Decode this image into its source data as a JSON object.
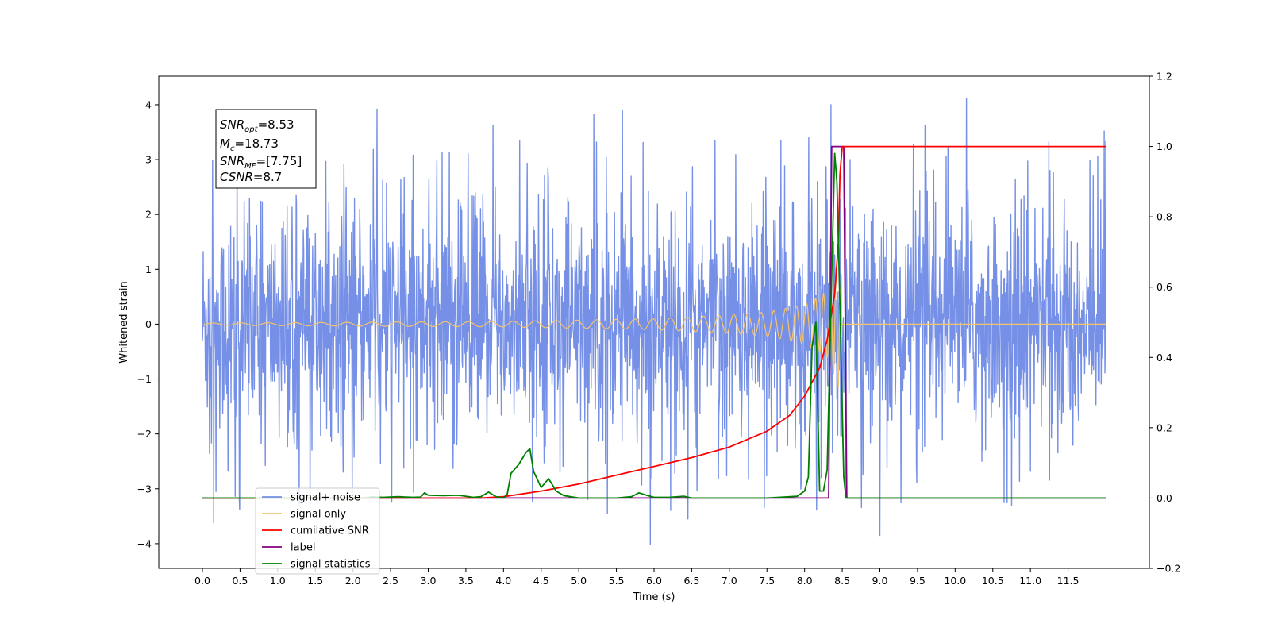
{
  "chart_data": {
    "type": "line",
    "title": "",
    "xlabel": "Time (s)",
    "ylabel": "Whitened strain",
    "y2label": "",
    "xlim": [
      -0.58,
      12.58
    ],
    "ylim": [
      -4.45,
      4.52
    ],
    "y2lim": [
      -0.2,
      1.2
    ],
    "grid": false,
    "legend_position": "bottom-left",
    "x_ticks": [
      "0.0",
      "0.5",
      "1.0",
      "1.5",
      "2.0",
      "2.5",
      "3.0",
      "3.5",
      "4.0",
      "4.5",
      "5.0",
      "5.5",
      "6.0",
      "6.5",
      "7.0",
      "7.5",
      "8.0",
      "8.5",
      "9.0",
      "9.5",
      "10.0",
      "10.5",
      "11.0",
      "11.5"
    ],
    "y_ticks": [
      "−4",
      "−3",
      "−2",
      "−1",
      "0",
      "1",
      "2",
      "3",
      "4"
    ],
    "y2_ticks": [
      "−0.2",
      "0.0",
      "0.2",
      "0.4",
      "0.6",
      "0.8",
      "1.0",
      "1.2"
    ],
    "annotation": {
      "snr_opt": {
        "main": "SNR",
        "sub": "opt",
        "value": "=8.53"
      },
      "mc": {
        "main": "M",
        "sub": "c",
        "value": "=18.73"
      },
      "snr_mf": {
        "main": "SNR",
        "sub": "MF",
        "value": "=[7.75]"
      },
      "csnr": {
        "main": "CSNR",
        "sub": "",
        "value": "=8.7"
      }
    },
    "series": [
      {
        "name": "signal+ noise",
        "color": "#7590e6",
        "axis": "left",
        "description": "noise-like trace, amplitude envelope about ±2, spikes to ±4",
        "x_range": [
          0,
          12
        ],
        "spikes": [
          {
            "x": 2.32,
            "y": 3.92
          },
          {
            "x": 3.86,
            "y": 3.62
          },
          {
            "x": 5.2,
            "y": 3.82
          },
          {
            "x": 5.58,
            "y": 3.9
          },
          {
            "x": 8.35,
            "y": 4.0
          },
          {
            "x": 9.6,
            "y": 3.62
          },
          {
            "x": 10.15,
            "y": 4.12
          },
          {
            "x": 11.98,
            "y": 3.52
          },
          {
            "x": 0.15,
            "y": -3.62
          },
          {
            "x": 5.38,
            "y": -3.45
          },
          {
            "x": 5.95,
            "y": -4.02
          },
          {
            "x": 9.0,
            "y": -3.85
          },
          {
            "x": 10.75,
            "y": -3.3
          },
          {
            "x": 6.45,
            "y": -3.55
          }
        ]
      },
      {
        "name": "signal only",
        "color": "#f5c36b",
        "axis": "left",
        "description": "chirp oscillation, amplitude grows toward merger near t=8.45 s, zero after",
        "envelope": [
          [
            0,
            0.02
          ],
          [
            4.0,
            0.05
          ],
          [
            6.0,
            0.1
          ],
          [
            7.0,
            0.17
          ],
          [
            7.5,
            0.22
          ],
          [
            8.0,
            0.36
          ],
          [
            8.3,
            0.6
          ],
          [
            8.45,
            1.15
          ],
          [
            8.5,
            0.0
          ],
          [
            12.0,
            0.0
          ]
        ]
      },
      {
        "name": "cumilative SNR",
        "color": "#ff0000",
        "axis": "right",
        "x": [
          0.0,
          3.7,
          4.0,
          4.5,
          5.0,
          5.5,
          6.0,
          6.5,
          7.0,
          7.5,
          7.8,
          8.0,
          8.2,
          8.3,
          8.4,
          8.45,
          8.47,
          8.5,
          12.0
        ],
        "y": [
          0.0,
          0.0,
          0.004,
          0.02,
          0.04,
          0.065,
          0.09,
          0.115,
          0.145,
          0.19,
          0.235,
          0.29,
          0.37,
          0.45,
          0.58,
          0.73,
          0.92,
          1.0,
          1.0
        ]
      },
      {
        "name": "label",
        "color": "#800080",
        "axis": "right",
        "x": [
          0.0,
          8.32,
          8.36,
          8.52,
          8.56,
          12.0
        ],
        "y": [
          0.0,
          0.0,
          1.0,
          1.0,
          0.0,
          0.0
        ]
      },
      {
        "name": "signal statistics",
        "color": "#008000",
        "axis": "right",
        "x": [
          0.0,
          2.15,
          2.25,
          2.4,
          2.6,
          2.8,
          2.9,
          2.95,
          3.0,
          3.2,
          3.4,
          3.6,
          3.7,
          3.8,
          3.9,
          4.0,
          4.05,
          4.1,
          4.2,
          4.3,
          4.35,
          4.4,
          4.5,
          4.6,
          4.7,
          4.8,
          5.0,
          5.2,
          5.5,
          5.7,
          5.8,
          5.9,
          6.0,
          6.2,
          6.4,
          6.5,
          7.5,
          7.9,
          8.0,
          8.05,
          8.1,
          8.15,
          8.2,
          8.25,
          8.3,
          8.35,
          8.4,
          8.43,
          8.47,
          8.52,
          8.55,
          12.0
        ],
        "y": [
          0.0,
          0.0,
          0.003,
          0.002,
          0.004,
          0.002,
          0.003,
          0.015,
          0.008,
          0.007,
          0.008,
          0.002,
          0.004,
          0.017,
          0.004,
          0.0,
          0.012,
          0.07,
          0.095,
          0.13,
          0.14,
          0.075,
          0.03,
          0.055,
          0.02,
          0.007,
          0.0,
          0.0,
          0.0,
          0.004,
          0.015,
          0.008,
          0.002,
          0.002,
          0.005,
          0.0,
          0.0,
          0.005,
          0.02,
          0.06,
          0.43,
          0.5,
          0.02,
          0.02,
          0.08,
          0.55,
          0.98,
          0.9,
          0.55,
          0.06,
          0.0,
          0.0
        ]
      }
    ],
    "legend_entries": [
      {
        "label": "signal+ noise",
        "color": "#7590e6"
      },
      {
        "label": "signal only",
        "color": "#f5c36b"
      },
      {
        "label": "cumilative SNR",
        "color": "#ff0000"
      },
      {
        "label": "label",
        "color": "#800080"
      },
      {
        "label": "signal statistics",
        "color": "#008000"
      }
    ]
  }
}
